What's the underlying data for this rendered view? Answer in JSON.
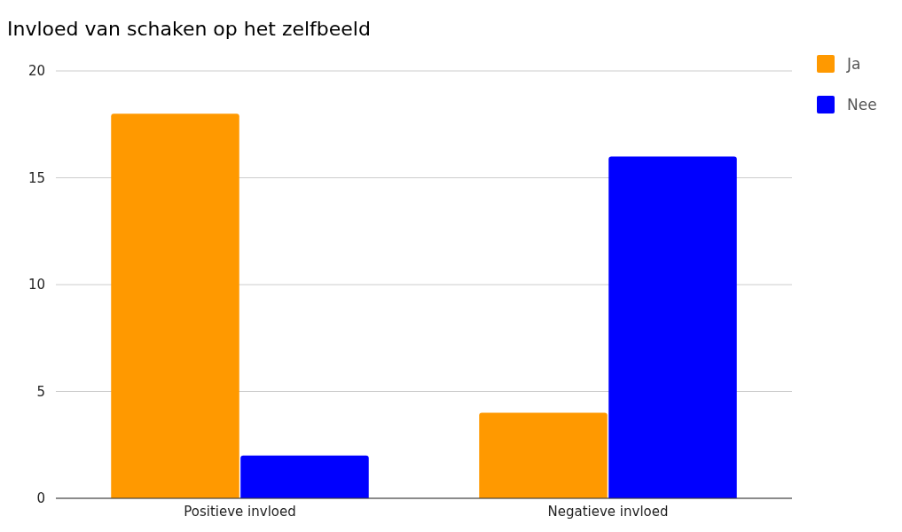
{
  "chart_data": {
    "type": "bar",
    "title": "Invloed van schaken op het zelfbeeld",
    "categories": [
      "Positieve invloed",
      "Negatieve invloed"
    ],
    "series": [
      {
        "name": "Ja",
        "color": "#ff9900",
        "values": [
          18,
          4
        ]
      },
      {
        "name": "Nee",
        "color": "#0000ff",
        "values": [
          2,
          16
        ]
      }
    ],
    "ylim": [
      0,
      20
    ],
    "yticks": [
      0,
      5,
      10,
      15,
      20
    ],
    "grid": "y",
    "legend": "top right"
  }
}
